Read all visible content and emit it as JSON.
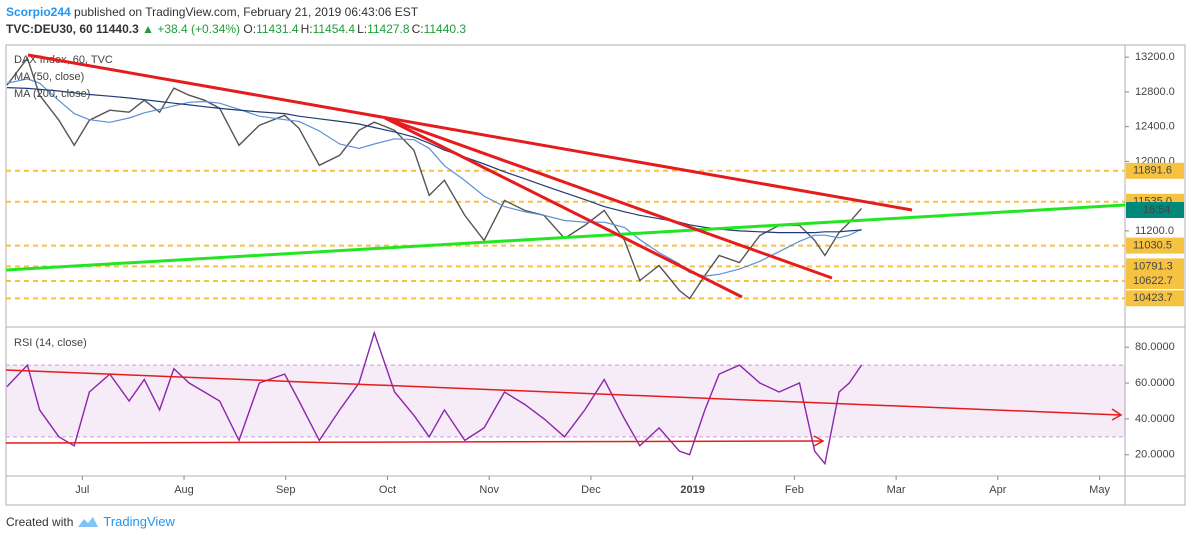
{
  "header": {
    "publisher": "Scorpio244",
    "published": "published on TradingView.com, February 21, 2019 06:43:06 EST",
    "symbol": "TVC:DEU30, 60",
    "last": "11440.3",
    "change": "▲ +38.4 (+0.34%)",
    "ohlc": [
      {
        "label": "O:",
        "value": "11431.4"
      },
      {
        "label": "H:",
        "value": "11454.4"
      },
      {
        "label": "L:",
        "value": "11427.8"
      },
      {
        "label": "C:",
        "value": "11440.3"
      }
    ]
  },
  "chart_data": [
    {
      "type": "line",
      "x": [
        6.26,
        6.46,
        6.58,
        6.77,
        6.92,
        7.07,
        7.27,
        7.46,
        7.61,
        7.76,
        7.9,
        8.05,
        8.2,
        8.35,
        8.54,
        8.74,
        8.99,
        9.13,
        9.33,
        9.53,
        9.72,
        9.87,
        10.07,
        10.26,
        10.41,
        10.56,
        10.76,
        10.95,
        11.15,
        11.35,
        11.54,
        11.74,
        11.94,
        12.13,
        12.33,
        12.48,
        12.67,
        12.87,
        12.97,
        13.12,
        13.26,
        13.46,
        13.66,
        13.85,
        14.05,
        14.2,
        14.3,
        14.44,
        14.54,
        14.66
      ],
      "series": [
        {
          "name": "DAX Index, 60, TVC",
          "color": "#555555",
          "values": [
            12877,
            13188,
            12762,
            12474,
            12185,
            12474,
            12589,
            12566,
            12704,
            12566,
            12843,
            12762,
            12704,
            12612,
            12185,
            12416,
            12531,
            12381,
            11955,
            12070,
            12358,
            12451,
            12358,
            12128,
            11609,
            11782,
            11378,
            11090,
            11551,
            11436,
            11378,
            11113,
            11263,
            11436,
            11090,
            10629,
            10802,
            10514,
            10421,
            10686,
            10917,
            10836,
            11147,
            11263,
            11263,
            11090,
            10917,
            11182,
            11298,
            11459
          ]
        },
        {
          "name": "MA (50, close)",
          "color": "#5b8fd6",
          "values": [
            12900,
            12950,
            12900,
            12700,
            12550,
            12480,
            12450,
            12500,
            12560,
            12600,
            12640,
            12680,
            12690,
            12670,
            12600,
            12520,
            12480,
            12460,
            12350,
            12200,
            12150,
            12200,
            12260,
            12250,
            12150,
            11950,
            11780,
            11600,
            11480,
            11420,
            11380,
            11320,
            11300,
            11300,
            11240,
            11100,
            10950,
            10820,
            10720,
            10680,
            10700,
            10760,
            10850,
            10960,
            11080,
            11150,
            11150,
            11120,
            11150,
            11220
          ]
        },
        {
          "name": "MA (200, close)",
          "color": "#1f3b73",
          "values": [
            12850,
            12840,
            12830,
            12810,
            12790,
            12770,
            12750,
            12730,
            12710,
            12690,
            12670,
            12650,
            12630,
            12610,
            12590,
            12570,
            12550,
            12520,
            12490,
            12460,
            12430,
            12390,
            12340,
            12280,
            12210,
            12130,
            12050,
            11970,
            11880,
            11800,
            11720,
            11640,
            11560,
            11480,
            11420,
            11380,
            11340,
            11300,
            11270,
            11240,
            11220,
            11200,
            11190,
            11180,
            11180,
            11180,
            11190,
            11190,
            11200,
            11210
          ]
        }
      ],
      "xlim": [
        6.25,
        17.25
      ],
      "ylim": [
        10105,
        13340
      ],
      "yticks": [
        {
          "value": 13200,
          "label": "13200.0"
        },
        {
          "value": 12800,
          "label": "12800.0"
        },
        {
          "value": 12400,
          "label": "12400.0"
        },
        {
          "value": 12000,
          "label": "12000.0"
        },
        {
          "value": 11200,
          "label": "11200.0"
        }
      ],
      "levels": [
        11891.6,
        {
          "value": 11535,
          "label": "11535.0"
        },
        11030.5,
        10791.3,
        10622.7,
        10423.7
      ],
      "level_color": "#f5c242",
      "last_value": 11440.3,
      "last_label": "16:54",
      "last_color": "#00897b"
    },
    {
      "type": "line",
      "x": [
        6.26,
        6.46,
        6.58,
        6.77,
        6.92,
        7.07,
        7.27,
        7.46,
        7.61,
        7.76,
        7.9,
        8.05,
        8.2,
        8.35,
        8.54,
        8.74,
        8.99,
        9.13,
        9.33,
        9.53,
        9.72,
        9.87,
        10.07,
        10.26,
        10.41,
        10.56,
        10.76,
        10.95,
        11.15,
        11.35,
        11.54,
        11.74,
        11.94,
        12.13,
        12.33,
        12.48,
        12.67,
        12.87,
        12.97,
        13.12,
        13.26,
        13.46,
        13.66,
        13.85,
        14.05,
        14.2,
        14.3,
        14.44,
        14.54,
        14.66
      ],
      "series": [
        {
          "name": "RSI (14, close)",
          "color": "#8e24aa",
          "values": [
            58,
            70,
            45,
            30,
            25,
            55,
            65,
            50,
            62,
            45,
            68,
            60,
            55,
            50,
            28,
            60,
            65,
            50,
            28,
            45,
            60,
            88,
            55,
            42,
            30,
            45,
            28,
            35,
            55,
            48,
            40,
            30,
            45,
            62,
            40,
            25,
            35,
            22,
            20,
            45,
            65,
            70,
            60,
            55,
            60,
            22,
            15,
            55,
            60,
            70
          ]
        }
      ],
      "band": [
        30,
        70
      ],
      "xlim": [
        6.25,
        17.25
      ],
      "ylim": [
        8.7,
        90.7
      ],
      "yticks": [
        {
          "value": 80,
          "label": "80.0000"
        },
        {
          "value": 60,
          "label": "60.0000"
        },
        {
          "value": 40,
          "label": "40.0000"
        },
        {
          "value": 20,
          "label": "20.0000"
        }
      ],
      "xticks": [
        {
          "value": 7,
          "label": "Jul"
        },
        {
          "value": 8,
          "label": "Aug"
        },
        {
          "value": 9,
          "label": "Sep"
        },
        {
          "value": 10,
          "label": "Oct"
        },
        {
          "value": 11,
          "label": "Nov"
        },
        {
          "value": 12,
          "label": "Dec"
        },
        {
          "value": 13,
          "label": "2019"
        },
        {
          "value": 14,
          "label": "Feb"
        },
        {
          "value": 15,
          "label": "Mar"
        },
        {
          "value": 16,
          "label": "Apr"
        },
        {
          "value": 17,
          "label": "May"
        }
      ]
    }
  ],
  "footer": {
    "created_with": "Created with",
    "brand": "TradingView"
  }
}
